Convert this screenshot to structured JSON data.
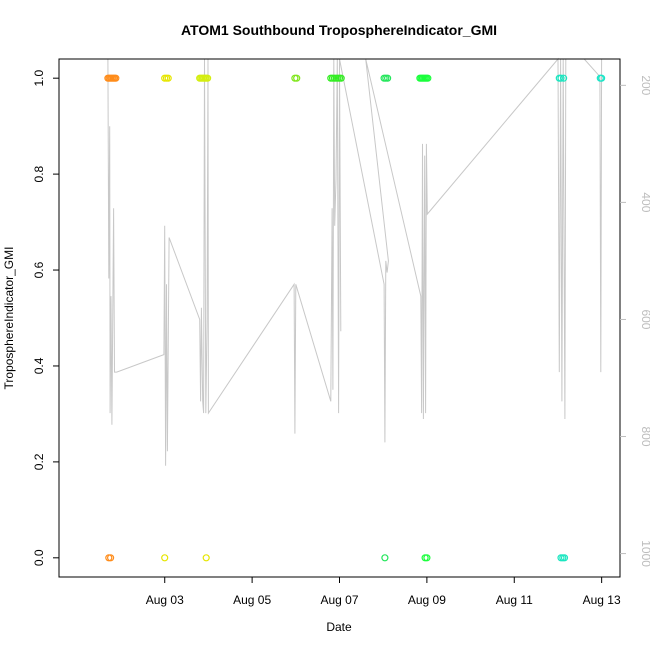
{
  "chart_data": {
    "type": "scatter",
    "title": "ATOM1 Southbound TroposphereIndicator_GMI",
    "xlabel": "Date",
    "ylabel": "TroposphereIndicator_GMI",
    "xlim": [
      0.58,
      13.42
    ],
    "ylim": [
      -0.04,
      1.04
    ],
    "x_tick_values": [
      3,
      5,
      7,
      9,
      11,
      13
    ],
    "x_tick_labels": [
      "Aug 03",
      "Aug 05",
      "Aug 07",
      "Aug 09",
      "Aug 11",
      "Aug 13"
    ],
    "y_tick_values": [
      0.0,
      0.2,
      0.4,
      0.6,
      0.8,
      1.0
    ],
    "y_tick_labels": [
      "0.0",
      "0.2",
      "0.4",
      "0.6",
      "0.8",
      "1.0"
    ],
    "secondary_axis": {
      "side": "right",
      "label": "",
      "lim": [
        1040,
        155
      ],
      "tick_values": [
        200,
        400,
        600,
        800,
        1000
      ],
      "tick_labels": [
        "200",
        "400",
        "600",
        "800",
        "1000"
      ],
      "color": "#bdbdbd"
    },
    "grid": false,
    "legend": "none",
    "point_style": "open-circle",
    "series": [
      {
        "color": "#ff8c1a",
        "points": [
          [
            1.7,
            1
          ],
          [
            1.73,
            1
          ],
          [
            1.76,
            1
          ],
          [
            1.79,
            1
          ],
          [
            1.82,
            1
          ],
          [
            1.85,
            1
          ],
          [
            1.88,
            1
          ],
          [
            1.72,
            0
          ],
          [
            1.76,
            0
          ]
        ]
      },
      {
        "color": "#e6e600",
        "points": [
          [
            3.0,
            1
          ],
          [
            3.04,
            1
          ],
          [
            3.08,
            1
          ],
          [
            3.0,
            0
          ],
          [
            3.95,
            0
          ]
        ]
      },
      {
        "color": "#d4ee10",
        "points": [
          [
            3.8,
            1
          ],
          [
            3.83,
            1
          ],
          [
            3.86,
            1
          ],
          [
            3.89,
            1
          ],
          [
            3.92,
            1
          ],
          [
            3.95,
            1
          ],
          [
            3.98,
            1
          ]
        ]
      },
      {
        "color": "#7fe61a",
        "points": [
          [
            5.98,
            1
          ],
          [
            6.02,
            1
          ]
        ]
      },
      {
        "color": "#33ee22",
        "points": [
          [
            6.8,
            1
          ],
          [
            6.84,
            1
          ],
          [
            6.88,
            1
          ],
          [
            6.92,
            1
          ],
          [
            6.96,
            1
          ],
          [
            7.0,
            1
          ],
          [
            7.04,
            1
          ]
        ]
      },
      {
        "color": "#22e65a",
        "points": [
          [
            8.02,
            1
          ],
          [
            8.06,
            1
          ],
          [
            8.1,
            1
          ],
          [
            8.04,
            0
          ]
        ]
      },
      {
        "color": "#1aff3c",
        "points": [
          [
            8.84,
            1
          ],
          [
            8.87,
            1
          ],
          [
            8.9,
            1
          ],
          [
            8.93,
            1
          ],
          [
            8.96,
            1
          ],
          [
            8.99,
            1
          ],
          [
            9.02,
            1
          ],
          [
            8.96,
            0
          ],
          [
            9.0,
            0
          ]
        ]
      },
      {
        "color": "#1ae6c0",
        "points": [
          [
            12.03,
            1
          ],
          [
            12.07,
            1
          ],
          [
            12.13,
            1
          ],
          [
            12.07,
            0
          ],
          [
            12.11,
            0
          ],
          [
            12.15,
            0
          ]
        ]
      },
      {
        "color": "#1ae6c8",
        "points": [
          [
            12.97,
            1
          ],
          [
            13.0,
            1
          ]
        ]
      }
    ],
    "pressure_trace": {
      "color": "#c8c8c8",
      "axis": "secondary",
      "points": [
        [
          1.7,
          155
        ],
        [
          1.72,
          530
        ],
        [
          1.74,
          270
        ],
        [
          1.75,
          760
        ],
        [
          1.77,
          560
        ],
        [
          1.79,
          780
        ],
        [
          1.83,
          410
        ],
        [
          1.85,
          690
        ],
        [
          1.9,
          690
        ],
        [
          2.98,
          660
        ],
        [
          3.0,
          440
        ],
        [
          3.02,
          850
        ],
        [
          3.04,
          540
        ],
        [
          3.06,
          825
        ],
        [
          3.1,
          460
        ],
        [
          3.8,
          600
        ],
        [
          3.82,
          740
        ],
        [
          3.84,
          580
        ],
        [
          3.87,
          740
        ],
        [
          3.89,
          760
        ],
        [
          3.91,
          155
        ],
        [
          3.94,
          760
        ],
        [
          3.97,
          600
        ],
        [
          3.99,
          155
        ],
        [
          4.0,
          760
        ],
        [
          5.96,
          540
        ],
        [
          5.98,
          795
        ],
        [
          6.0,
          540
        ],
        [
          6.8,
          740
        ],
        [
          6.83,
          410
        ],
        [
          6.85,
          720
        ],
        [
          6.87,
          155
        ],
        [
          6.89,
          440
        ],
        [
          6.92,
          360
        ],
        [
          6.95,
          155
        ],
        [
          6.98,
          760
        ],
        [
          7.0,
          155
        ],
        [
          7.03,
          620
        ],
        [
          7.0,
          155
        ],
        [
          8.02,
          540
        ],
        [
          8.04,
          810
        ],
        [
          8.06,
          500
        ],
        [
          8.09,
          520
        ],
        [
          8.12,
          500
        ],
        [
          7.6,
          155
        ],
        [
          8.86,
          560
        ],
        [
          8.88,
          760
        ],
        [
          8.9,
          300
        ],
        [
          8.92,
          770
        ],
        [
          8.95,
          320
        ],
        [
          8.97,
          760
        ],
        [
          8.99,
          300
        ],
        [
          9.01,
          420
        ],
        [
          12.0,
          155
        ],
        [
          12.03,
          690
        ],
        [
          12.06,
          155
        ],
        [
          12.09,
          740
        ],
        [
          12.12,
          155
        ],
        [
          12.16,
          770
        ],
        [
          12.18,
          155
        ],
        [
          12.6,
          155
        ],
        [
          12.96,
          185
        ],
        [
          12.98,
          690
        ],
        [
          13.0,
          155
        ]
      ]
    }
  }
}
